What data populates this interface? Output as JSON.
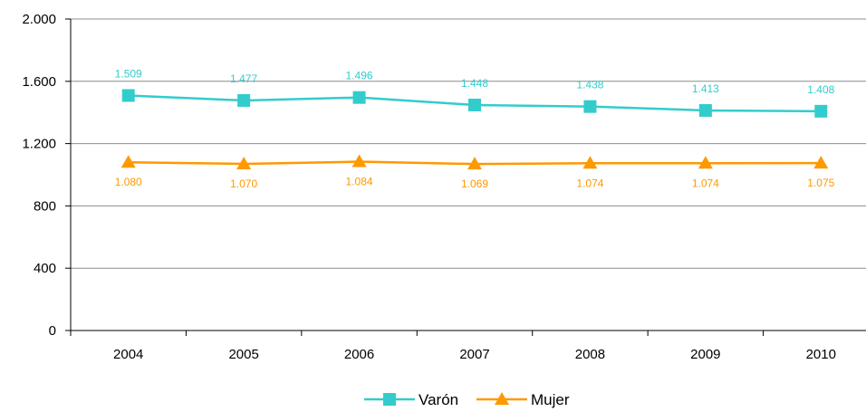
{
  "chart_data": {
    "type": "line",
    "categories": [
      "2004",
      "2005",
      "2006",
      "2007",
      "2008",
      "2009",
      "2010"
    ],
    "ylim": [
      0,
      2000
    ],
    "yticks": [
      0,
      400,
      800,
      1200,
      1600,
      2000
    ],
    "ytick_labels": [
      "0",
      "400",
      "800",
      "1.200",
      "1.600",
      "2.000"
    ],
    "grid": true,
    "legend_position": "bottom",
    "series": [
      {
        "name": "Varón",
        "color": "#33CCCC",
        "marker": "square",
        "values": [
          1509,
          1477,
          1496,
          1448,
          1438,
          1413,
          1408
        ],
        "labels": [
          "1.509",
          "1.477",
          "1.496",
          "1.448",
          "1.438",
          "1.413",
          "1.408"
        ],
        "label_position": "above"
      },
      {
        "name": "Mujer",
        "color": "#FF9900",
        "marker": "triangle",
        "values": [
          1080,
          1070,
          1084,
          1069,
          1074,
          1074,
          1075
        ],
        "labels": [
          "1.080",
          "1.070",
          "1.084",
          "1.069",
          "1.074",
          "1.074",
          "1.075"
        ],
        "label_position": "below"
      }
    ]
  }
}
